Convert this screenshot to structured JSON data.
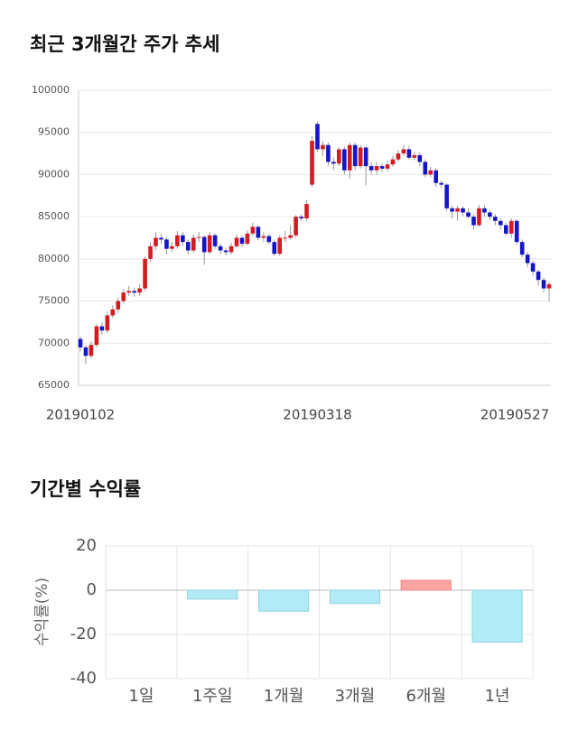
{
  "chart_data": [
    {
      "type": "candlestick",
      "title": "최근 3개월간 주가 추세",
      "categories": [
        "20190102",
        null,
        null,
        null,
        null,
        null,
        null,
        null,
        null,
        null,
        null,
        null,
        null,
        null,
        null,
        null,
        null,
        null,
        null,
        null,
        null,
        null,
        null,
        null,
        null,
        null,
        null,
        null,
        null,
        null,
        null,
        null,
        null,
        null,
        null,
        null,
        null,
        null,
        null,
        null,
        null,
        null,
        null,
        null,
        "20190318",
        null,
        null,
        null,
        null,
        null,
        null,
        null,
        null,
        null,
        null,
        null,
        null,
        null,
        null,
        null,
        null,
        null,
        null,
        null,
        null,
        null,
        null,
        null,
        null,
        null,
        null,
        null,
        null,
        null,
        null,
        null,
        null,
        null,
        null,
        null,
        null,
        null,
        null,
        null,
        null,
        null,
        null,
        "20190527"
      ],
      "open": [
        70500,
        69500,
        68500,
        69800,
        72000,
        71500,
        73300,
        74000,
        75000,
        76000,
        76200,
        76000,
        76500,
        80000,
        81500,
        82500,
        82300,
        81200,
        81500,
        82800,
        82000,
        81000,
        82500,
        82600,
        80800,
        82800,
        81500,
        81000,
        80800,
        81500,
        82500,
        81800,
        83000,
        83800,
        82500,
        82700,
        82000,
        80600,
        82500,
        82500,
        82800,
        85000,
        84800,
        88800,
        96000,
        93000,
        93500,
        91500,
        91300,
        93000,
        90500,
        93500,
        91000,
        93200,
        91000,
        90500,
        91000,
        90700,
        91200,
        91800,
        92500,
        93000,
        92000,
        92300,
        91500,
        90000,
        90500,
        89000,
        88800,
        86000,
        85600,
        86000,
        85500,
        85000,
        84000,
        86000,
        85500,
        85000,
        84500,
        84000,
        83000,
        84500,
        82000,
        80500,
        79500,
        78500,
        77500,
        76500
      ],
      "high": [
        70800,
        69800,
        70200,
        72300,
        72500,
        73700,
        74500,
        75400,
        76400,
        76800,
        76600,
        77000,
        80300,
        82000,
        83200,
        83000,
        82600,
        82000,
        83300,
        83200,
        82300,
        82900,
        83200,
        82800,
        83200,
        83000,
        81800,
        81300,
        81900,
        82900,
        82800,
        83400,
        84300,
        84000,
        83200,
        83000,
        82300,
        82800,
        83300,
        84000,
        85200,
        85300,
        87000,
        94500,
        96300,
        94000,
        93800,
        92000,
        93200,
        93300,
        93800,
        93800,
        93500,
        93400,
        91500,
        91500,
        91300,
        91600,
        92200,
        92900,
        93500,
        93400,
        92700,
        92600,
        91800,
        90900,
        90800,
        89300,
        89000,
        86300,
        86300,
        86200,
        86000,
        85300,
        86400,
        86400,
        85800,
        85300,
        84800,
        84300,
        84800,
        84700,
        82300,
        80800,
        79800,
        78700,
        77800,
        77300
      ],
      "low": [
        69000,
        67500,
        68200,
        69500,
        71000,
        71200,
        73000,
        73600,
        74700,
        75600,
        75500,
        75600,
        76200,
        79700,
        81000,
        81800,
        80600,
        80800,
        81200,
        81500,
        80500,
        80700,
        82000,
        79300,
        80600,
        81200,
        80600,
        80400,
        80500,
        81300,
        81400,
        81600,
        82700,
        82200,
        82000,
        81700,
        80400,
        80400,
        82000,
        82300,
        82500,
        84500,
        84500,
        88500,
        92700,
        92200,
        91000,
        90500,
        91000,
        90000,
        89500,
        90500,
        90700,
        88700,
        90000,
        90000,
        90300,
        90400,
        90900,
        91500,
        92200,
        91800,
        91700,
        91000,
        89700,
        89700,
        88500,
        88400,
        85700,
        84800,
        84500,
        85100,
        84800,
        83500,
        83800,
        85000,
        84600,
        84000,
        83500,
        82700,
        82500,
        81700,
        80200,
        79000,
        78000,
        76800,
        76000,
        75000
      ],
      "close": [
        69500,
        68500,
        69800,
        72000,
        71500,
        73300,
        74000,
        75000,
        76000,
        76200,
        76000,
        76500,
        80000,
        81500,
        82500,
        82300,
        81200,
        81500,
        82800,
        82000,
        81000,
        82500,
        82600,
        80800,
        82800,
        81500,
        81000,
        80800,
        81500,
        82500,
        81800,
        83000,
        83800,
        82500,
        82700,
        82000,
        80600,
        82500,
        82500,
        82800,
        85000,
        84800,
        86500,
        94000,
        93000,
        93500,
        91500,
        91300,
        93000,
        90500,
        93500,
        91000,
        93200,
        91000,
        90500,
        91000,
        90700,
        91200,
        91800,
        92500,
        93000,
        92000,
        92300,
        91500,
        90000,
        90500,
        89000,
        88800,
        86000,
        85600,
        86000,
        85500,
        85000,
        84000,
        86000,
        85500,
        85000,
        84500,
        84000,
        83000,
        84500,
        82000,
        80500,
        79500,
        78500,
        77500,
        76500,
        77000
      ],
      "up_color": "#d71920",
      "down_color": "#1414c8",
      "ylim": [
        65000,
        100000
      ],
      "yticks": [
        65000,
        70000,
        75000,
        80000,
        85000,
        90000,
        95000,
        100000
      ],
      "grid": true
    },
    {
      "type": "bar",
      "title": "기간별 수익률",
      "ylabel": "수익률(%)",
      "categories": [
        "1일",
        "1주일",
        "1개월",
        "3개월",
        "6개월",
        "1년"
      ],
      "values": [
        0,
        -4,
        -9.5,
        -6,
        4.5,
        -23.5
      ],
      "positive_color": "#ffa3a3",
      "negative_color": "#b2ebf5",
      "ylim": [
        -40,
        20
      ],
      "yticks": [
        -40,
        -20,
        0,
        20
      ],
      "grid": true
    }
  ]
}
